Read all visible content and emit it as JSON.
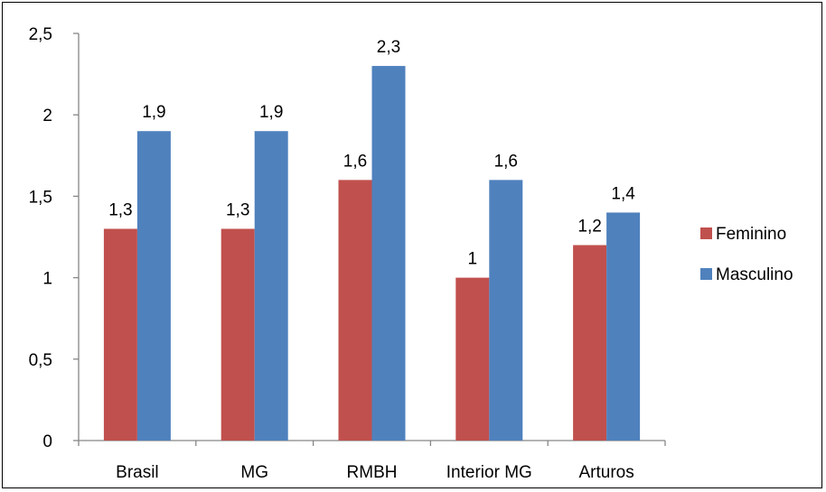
{
  "chart_data": {
    "type": "bar",
    "categories": [
      "Brasil",
      "MG",
      "RMBH",
      "Interior MG",
      "Arturos"
    ],
    "series": [
      {
        "name": "Feminino",
        "values": [
          1.3,
          1.3,
          1.6,
          1.0,
          1.2
        ],
        "color": "#C0504D"
      },
      {
        "name": "Masculino",
        "values": [
          1.9,
          1.9,
          2.3,
          1.6,
          1.4
        ],
        "color": "#4F81BD"
      }
    ],
    "data_labels": [
      [
        "1,3",
        "1,3",
        "1,6",
        "1",
        "1,2"
      ],
      [
        "1,9",
        "1,9",
        "2,3",
        "1,6",
        "1,4"
      ]
    ],
    "y_ticks": [
      {
        "value": 0,
        "label": "0"
      },
      {
        "value": 0.5,
        "label": "0,5"
      },
      {
        "value": 1,
        "label": "1"
      },
      {
        "value": 1.5,
        "label": "1,5"
      },
      {
        "value": 2,
        "label": "2"
      },
      {
        "value": 2.5,
        "label": "2,5"
      }
    ],
    "ylim": [
      0,
      2.5
    ],
    "title": "",
    "xlabel": "",
    "ylabel": "",
    "grid": false,
    "legend_position": "right"
  }
}
